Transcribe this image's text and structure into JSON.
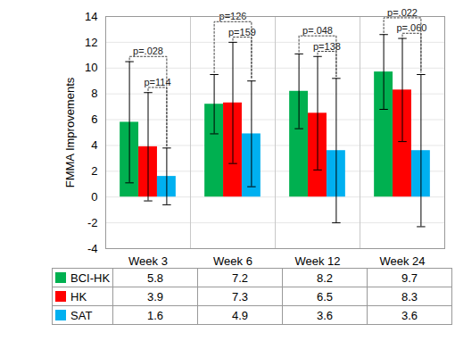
{
  "chart_data": {
    "type": "bar",
    "ylabel": "FMMA Improvements",
    "categories": [
      "Week 3",
      "Week 6",
      "Week 12",
      "Week 24"
    ],
    "series": [
      {
        "name": "BCI-HK",
        "color": "#00b050",
        "values": [
          5.8,
          7.2,
          8.2,
          9.7
        ],
        "errors": [
          4.7,
          2.3,
          2.9,
          2.9
        ]
      },
      {
        "name": "HK",
        "color": "#ff0000",
        "values": [
          3.9,
          7.3,
          6.5,
          8.3
        ],
        "errors": [
          4.2,
          4.7,
          4.4,
          4.0
        ]
      },
      {
        "name": "SAT",
        "color": "#00b0f0",
        "values": [
          1.6,
          4.9,
          3.6,
          3.6
        ],
        "errors": [
          2.2,
          4.1,
          5.6,
          5.9
        ]
      }
    ],
    "ylim": [
      -4,
      14
    ],
    "yticks": [
      -4,
      -2,
      0,
      2,
      4,
      6,
      8,
      10,
      12,
      14
    ],
    "grid": true,
    "data_labels": true,
    "annotations": [
      {
        "category": "Week 3",
        "from": "BCI-HK",
        "to": "SAT",
        "text": "p=.028"
      },
      {
        "category": "Week 3",
        "from": "HK",
        "to": "SAT",
        "text": "p=114"
      },
      {
        "category": "Week 6",
        "from": "BCI-HK",
        "to": "SAT",
        "text": "p=126"
      },
      {
        "category": "Week 6",
        "from": "HK",
        "to": "SAT",
        "text": "p=159"
      },
      {
        "category": "Week 12",
        "from": "BCI-HK",
        "to": "SAT",
        "text": "p=.048"
      },
      {
        "category": "Week 12",
        "from": "HK",
        "to": "SAT",
        "text": "p=138"
      },
      {
        "category": "Week 24",
        "from": "BCI-HK",
        "to": "SAT",
        "text": "p=.022"
      },
      {
        "category": "Week 24",
        "from": "HK",
        "to": "SAT",
        "text": "p=.060"
      }
    ]
  }
}
